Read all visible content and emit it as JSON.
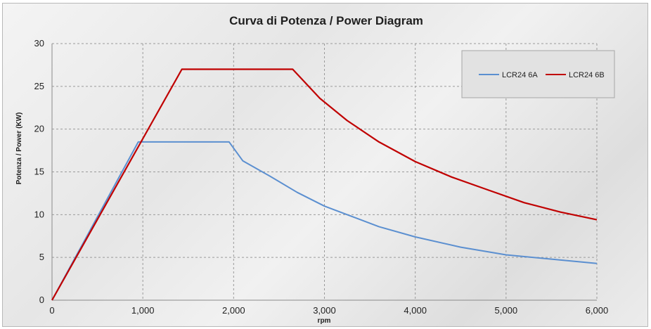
{
  "chart_data": {
    "type": "line",
    "title": "Curva di Potenza / Power Diagram",
    "xlabel": "rpm",
    "ylabel": "Potenza / Power (KW)",
    "xlim": [
      0,
      6000
    ],
    "ylim": [
      0,
      30
    ],
    "x_ticks": [
      0,
      1000,
      2000,
      3000,
      4000,
      5000,
      6000
    ],
    "x_tick_labels": [
      "0",
      "1,000",
      "2,000",
      "3,000",
      "4,000",
      "5,000",
      "6,000"
    ],
    "y_ticks": [
      0,
      5,
      10,
      15,
      20,
      25,
      30
    ],
    "y_tick_labels": [
      "0",
      "5",
      "10",
      "15",
      "20",
      "25",
      "30"
    ],
    "grid": true,
    "legend_position": "top-right",
    "series": [
      {
        "name": "LCR24 6A",
        "color": "#5b8fd0",
        "points": [
          [
            0,
            0
          ],
          [
            950,
            18.5
          ],
          [
            1950,
            18.5
          ],
          [
            2100,
            16.3
          ],
          [
            2400,
            14.5
          ],
          [
            2700,
            12.6
          ],
          [
            3000,
            11.0
          ],
          [
            3300,
            9.8
          ],
          [
            3600,
            8.6
          ],
          [
            4000,
            7.4
          ],
          [
            4500,
            6.2
          ],
          [
            5000,
            5.3
          ],
          [
            5500,
            4.8
          ],
          [
            6000,
            4.3
          ]
        ]
      },
      {
        "name": "LCR24 6B",
        "color": "#c00000",
        "points": [
          [
            0,
            0
          ],
          [
            1430,
            27.0
          ],
          [
            2650,
            27.0
          ],
          [
            2950,
            23.6
          ],
          [
            3250,
            21.0
          ],
          [
            3600,
            18.5
          ],
          [
            4000,
            16.2
          ],
          [
            4400,
            14.4
          ],
          [
            4800,
            12.9
          ],
          [
            5200,
            11.4
          ],
          [
            5600,
            10.3
          ],
          [
            6000,
            9.4
          ]
        ]
      }
    ]
  }
}
